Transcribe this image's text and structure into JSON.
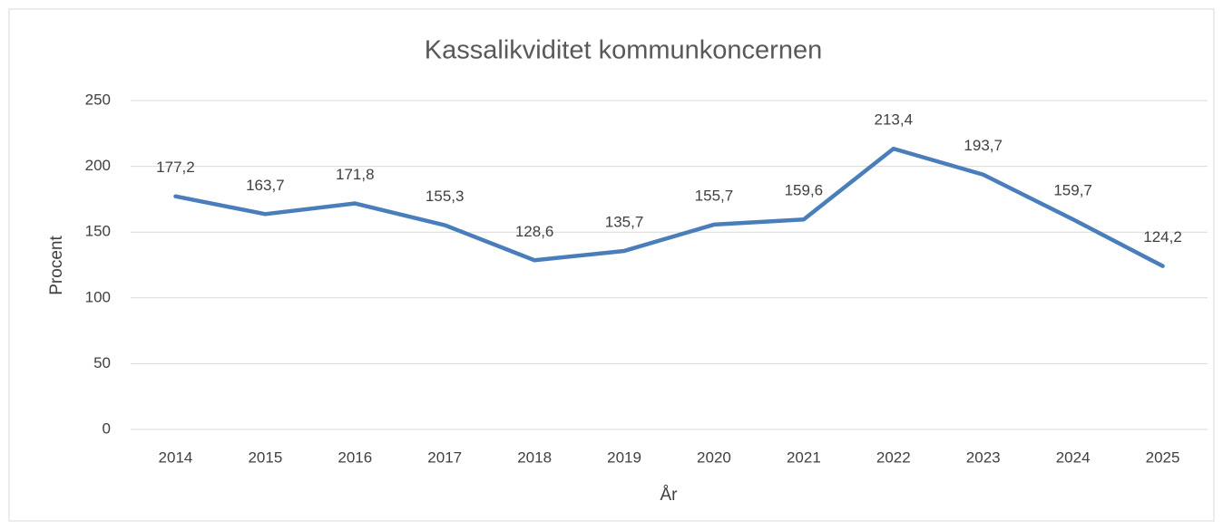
{
  "chart_data": {
    "type": "line",
    "title": "Kassalikviditet kommunkoncernen",
    "x_label": "År",
    "y_label": "Procent",
    "categories": [
      "2014",
      "2015",
      "2016",
      "2017",
      "2018",
      "2019",
      "2020",
      "2021",
      "2022",
      "2023",
      "2024",
      "2025"
    ],
    "series": [
      {
        "name": "Kassalikviditet",
        "color": "#4a7ebb",
        "values": [
          177.2,
          163.7,
          171.8,
          155.3,
          128.6,
          135.7,
          155.7,
          159.6,
          213.4,
          193.7,
          159.7,
          124.2
        ],
        "value_labels": [
          "177,2",
          "163,7",
          "171,8",
          "155,3",
          "128,6",
          "135,7",
          "155,7",
          "159,6",
          "213,4",
          "193,7",
          "159,7",
          "124,2"
        ]
      }
    ],
    "ylim": [
      0,
      250
    ],
    "yticks": [
      0,
      50,
      100,
      150,
      200,
      250
    ],
    "grid": true
  }
}
